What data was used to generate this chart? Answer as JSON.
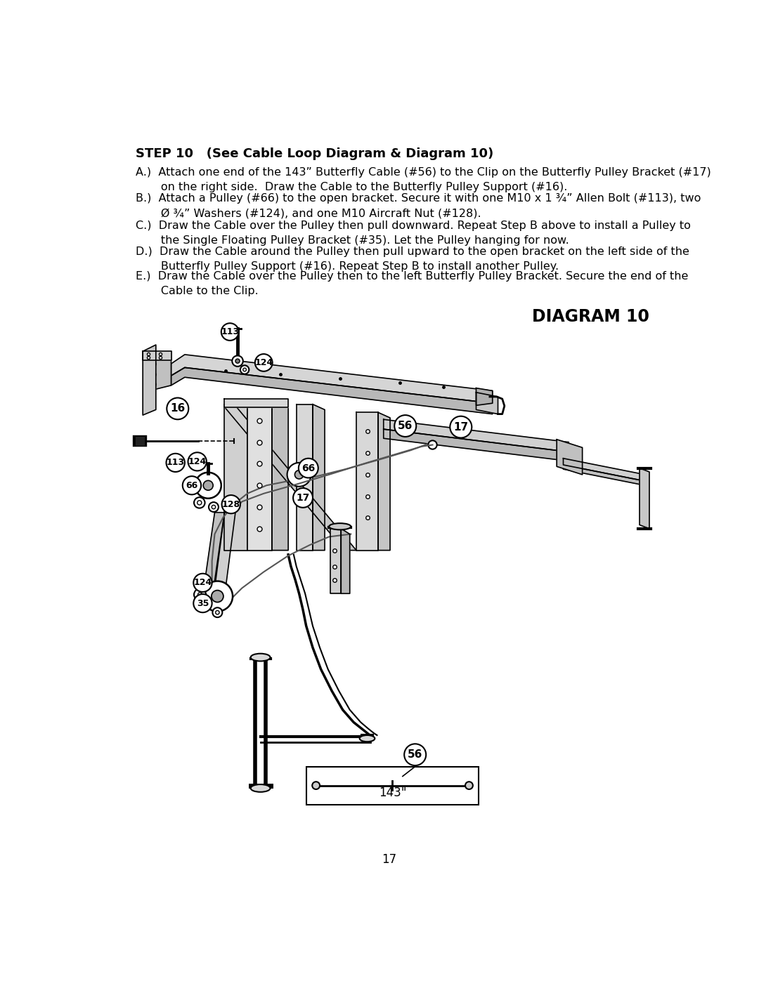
{
  "page_number": "17",
  "background_color": "#ffffff",
  "text_color": "#000000",
  "title": "STEP 10   (See Cable Loop Diagram & Diagram 10)",
  "diagram_title": "DIAGRAM 10",
  "instructions": [
    "A.)  Attach one end of the 143” Butterfly Cable (#56) to the Clip on the Butterfly Pulley Bracket (#17)\n       on the right side.  Draw the Cable to the Butterfly Pulley Support (#16).",
    "B.)  Attach a Pulley (#66) to the open bracket. Secure it with one M10 x 1 ¾” Allen Bolt (#113), two\n       Ø ¾” Washers (#124), and one M10 Aircraft Nut (#128).",
    "C.)  Draw the Cable over the Pulley then pull downward. Repeat Step B above to install a Pulley to\n       the Single Floating Pulley Bracket (#35). Let the Pulley hanging for now.",
    "D.)  Draw the Cable around the Pulley then pull upward to the open bracket on the left side of the\n       Butterfly Pulley Support (#16). Repeat Step B to install another Pulley.",
    "E.)  Draw the Cable over the Pulley then to the left Butterfly Pulley Bracket. Secure the end of the\n       Cable to the Clip."
  ],
  "title_fontsize": 13,
  "body_fontsize": 11.5,
  "diagram_title_fontsize": 17
}
